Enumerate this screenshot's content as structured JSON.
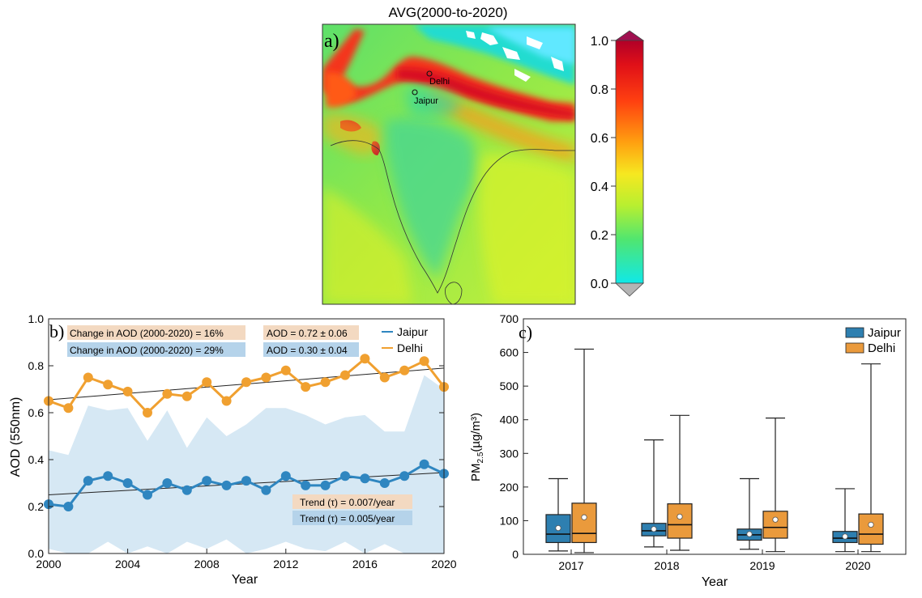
{
  "panel_a": {
    "title": "AVG(2000-to-2020)",
    "label": "a)",
    "cities": [
      {
        "name": "Delhi"
      },
      {
        "name": "Jaipur"
      }
    ],
    "colorbar": {
      "min": 0.0,
      "max": 1.0,
      "ticks": [
        "1.0",
        "0.8",
        "0.6",
        "0.4",
        "0.2",
        "0.0"
      ],
      "colors": [
        "#800040",
        "#cc0018",
        "#ff3010",
        "#ff8a10",
        "#ffd020",
        "#f3ef20",
        "#b8ef30",
        "#60e660",
        "#20e8c0",
        "#10e8e8",
        "#b8b8b8"
      ]
    }
  },
  "panel_b": {
    "label": "b)",
    "annotations": {
      "change_delhi": "Change in AOD (2000-2020) = 16%",
      "change_jaipur": "Change in AOD (2000-2020) = 29%",
      "aod_delhi": "AOD = 0.72 ± 0.06",
      "aod_jaipur": "AOD = 0.30 ± 0.04",
      "trend_delhi": "Trend (τ) = 0.007/year",
      "trend_jaipur": "Trend (τ) = 0.005/year"
    },
    "colors": {
      "delhi": "#f0a030",
      "jaipur": "#2f86c0",
      "band": "#d6e8f4",
      "delhi_box": "#f3d9c1",
      "jaipur_box": "#b5d3ea"
    }
  },
  "panel_c": {
    "label": "c)",
    "colors": {
      "jaipur": "#2e7fb0",
      "delhi": "#ea9a3c"
    }
  },
  "chart_data": [
    {
      "type": "line",
      "title": "",
      "xlabel": "Year",
      "ylabel": "AOD (550nm)",
      "xlim": [
        2000,
        2020
      ],
      "ylim": [
        0.0,
        1.0
      ],
      "xticks": [
        "2000",
        "2004",
        "2008",
        "2012",
        "2016",
        "2020"
      ],
      "yticks": [
        "0.0",
        "0.2",
        "0.4",
        "0.6",
        "0.8",
        "1.0"
      ],
      "x": [
        2000,
        2001,
        2002,
        2003,
        2004,
        2005,
        2006,
        2007,
        2008,
        2009,
        2010,
        2011,
        2012,
        2013,
        2014,
        2015,
        2016,
        2017,
        2018,
        2019,
        2020
      ],
      "series": [
        {
          "name": "Jaipur",
          "values": [
            0.21,
            0.2,
            0.31,
            0.33,
            0.3,
            0.25,
            0.3,
            0.27,
            0.31,
            0.29,
            0.31,
            0.27,
            0.33,
            0.29,
            0.29,
            0.33,
            0.32,
            0.3,
            0.33,
            0.38,
            0.34
          ]
        },
        {
          "name": "Delhi",
          "values": [
            0.65,
            0.62,
            0.75,
            0.72,
            0.69,
            0.6,
            0.68,
            0.67,
            0.73,
            0.65,
            0.73,
            0.75,
            0.78,
            0.71,
            0.73,
            0.76,
            0.83,
            0.75,
            0.78,
            0.82,
            0.71
          ]
        }
      ],
      "trend_lines": [
        {
          "name": "Jaipur",
          "start": 0.25,
          "end": 0.345
        },
        {
          "name": "Delhi",
          "start": 0.655,
          "end": 0.79
        }
      ],
      "band": {
        "upper": [
          0.44,
          0.42,
          0.63,
          0.61,
          0.62,
          0.48,
          0.61,
          0.45,
          0.58,
          0.5,
          0.55,
          0.62,
          0.62,
          0.59,
          0.55,
          0.58,
          0.59,
          0.52,
          0.52,
          0.76,
          0.7
        ],
        "lower": [
          0.02,
          0.0,
          0.0,
          0.05,
          0.0,
          0.03,
          0.0,
          0.05,
          0.02,
          0.06,
          0.0,
          0.02,
          0.05,
          0.02,
          0.01,
          0.05,
          0.0,
          0.04,
          0.0,
          0.0,
          0.0
        ]
      },
      "legend": {
        "position": "top-right",
        "entries": [
          "Jaipur",
          "Delhi"
        ]
      }
    },
    {
      "type": "box",
      "title": "",
      "xlabel": "Year",
      "ylabel_main": "PM",
      "ylabel_sub": "2.5",
      "ylabel_unit": "(µg/m³)",
      "ylim": [
        0,
        700
      ],
      "yticks": [
        "0",
        "100",
        "200",
        "300",
        "400",
        "500",
        "600",
        "700"
      ],
      "categories": [
        "2017",
        "2018",
        "2019",
        "2020"
      ],
      "series": [
        {
          "name": "Jaipur",
          "boxes": [
            {
              "min": 10,
              "q1": 35,
              "median": 60,
              "q3": 118,
              "max": 225,
              "mean": 78
            },
            {
              "min": 22,
              "q1": 55,
              "median": 70,
              "q3": 92,
              "max": 340,
              "mean": 75
            },
            {
              "min": 15,
              "q1": 42,
              "median": 58,
              "q3": 75,
              "max": 225,
              "mean": 60
            },
            {
              "min": 8,
              "q1": 35,
              "median": 48,
              "q3": 68,
              "max": 195,
              "mean": 53
            }
          ]
        },
        {
          "name": "Delhi",
          "boxes": [
            {
              "min": 5,
              "q1": 35,
              "median": 62,
              "q3": 152,
              "max": 610,
              "mean": 110
            },
            {
              "min": 12,
              "q1": 48,
              "median": 88,
              "q3": 150,
              "max": 413,
              "mean": 112
            },
            {
              "min": 8,
              "q1": 48,
              "median": 80,
              "q3": 128,
              "max": 405,
              "mean": 103
            },
            {
              "min": 8,
              "q1": 30,
              "median": 60,
              "q3": 120,
              "max": 566,
              "mean": 88
            }
          ]
        }
      ],
      "legend": {
        "position": "top-right",
        "entries": [
          "Jaipur",
          "Delhi"
        ]
      }
    }
  ]
}
